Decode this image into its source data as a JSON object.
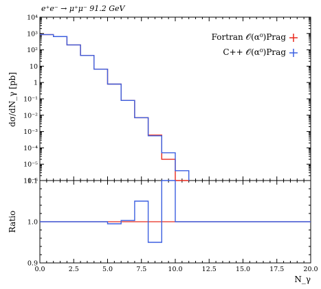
{
  "chart_data": [
    {
      "type": "line",
      "title": "e⁺e⁻ → μ⁺μ⁻ 91.2 GeV",
      "xlabel": "",
      "ylabel": "dσ/dN_γ [pb]",
      "yscale": "log",
      "ylim": [
        1e-06,
        10000
      ],
      "xlim": [
        0,
        20
      ],
      "y_tick_labels": [
        "10⁻⁶",
        "10⁻⁵",
        "10⁻⁴",
        "10⁻³",
        "10⁻²",
        "10⁻¹",
        "1",
        "10",
        "10²",
        "10³",
        "10⁴"
      ],
      "legend_position": "top-right",
      "bin_edges": [
        0,
        1,
        2,
        3,
        4,
        5,
        6,
        7,
        8,
        9,
        10,
        11
      ],
      "series": [
        {
          "name": "Fortran 𝒪(α⁰)Prag",
          "color": "#e8291c",
          "values": [
            850,
            650,
            200,
            45,
            6.5,
            0.8,
            0.08,
            0.007,
            0.0006,
            2e-05,
            1e-06
          ]
        },
        {
          "name": "C++ 𝒪(α⁰)Prag",
          "color": "#3b5fe0",
          "values": [
            850,
            650,
            200,
            45,
            6.5,
            0.8,
            0.08,
            0.007,
            0.00055,
            5e-05,
            4e-06
          ]
        }
      ]
    },
    {
      "type": "line",
      "xlabel": "N_γ",
      "ylabel": "Ratio",
      "xlim": [
        0,
        20
      ],
      "ylim": [
        0.9,
        1.1
      ],
      "x_tick_labels": [
        "0.0",
        "2.5",
        "5.0",
        "7.5",
        "10.0",
        "12.5",
        "15.0",
        "17.5",
        "20.0"
      ],
      "y_tick_labels": [
        "0.9",
        "1.0",
        "1.1"
      ],
      "series": [
        {
          "name": "Fortran",
          "color": "#e8291c",
          "x": [
            0,
            9
          ],
          "values": [
            1.0,
            1.0
          ],
          "extended_to": 20
        },
        {
          "name": "C++",
          "color": "#3b5fe0",
          "bin_edges": [
            0,
            1,
            2,
            3,
            4,
            5,
            6,
            7,
            8,
            9,
            10,
            20
          ],
          "values": [
            1.0,
            1.0,
            1.0,
            1.0,
            1.0,
            0.995,
            1.003,
            1.05,
            0.95,
            2.5,
            1.0
          ]
        }
      ]
    }
  ]
}
